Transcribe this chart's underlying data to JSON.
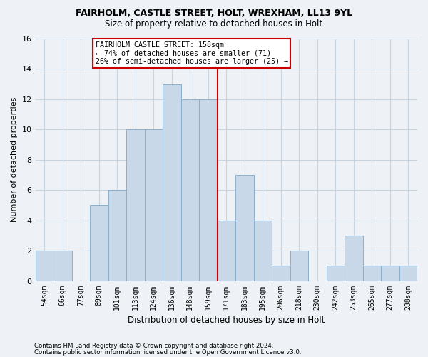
{
  "title": "FAIRHOLM, CASTLE STREET, HOLT, WREXHAM, LL13 9YL",
  "subtitle": "Size of property relative to detached houses in Holt",
  "xlabel": "Distribution of detached houses by size in Holt",
  "ylabel": "Number of detached properties",
  "bar_labels": [
    "54sqm",
    "66sqm",
    "77sqm",
    "89sqm",
    "101sqm",
    "113sqm",
    "124sqm",
    "136sqm",
    "148sqm",
    "159sqm",
    "171sqm",
    "183sqm",
    "195sqm",
    "206sqm",
    "218sqm",
    "230sqm",
    "242sqm",
    "253sqm",
    "265sqm",
    "277sqm",
    "288sqm"
  ],
  "bar_values": [
    2,
    2,
    0,
    5,
    6,
    10,
    10,
    13,
    12,
    12,
    4,
    7,
    4,
    1,
    2,
    0,
    1,
    3,
    1,
    1,
    1
  ],
  "bar_color": "#c8d8e8",
  "bar_edge_color": "#8ab0cc",
  "red_line_x": 9.5,
  "red_line_color": "#cc0000",
  "annotation_text": "FAIRHOLM CASTLE STREET: 158sqm\n← 74% of detached houses are smaller (71)\n26% of semi-detached houses are larger (25) →",
  "annotation_box_facecolor": "#ffffff",
  "annotation_box_edgecolor": "#cc0000",
  "ylim": [
    0,
    16
  ],
  "yticks": [
    0,
    2,
    4,
    6,
    8,
    10,
    12,
    14,
    16
  ],
  "footer_line1": "Contains HM Land Registry data © Crown copyright and database right 2024.",
  "footer_line2": "Contains public sector information licensed under the Open Government Licence v3.0.",
  "grid_color": "#c8d4e0",
  "background_color": "#eef2f6",
  "title_fontsize": 9,
  "subtitle_fontsize": 8.5,
  "tick_fontsize": 7,
  "ylabel_fontsize": 8,
  "xlabel_fontsize": 8.5
}
